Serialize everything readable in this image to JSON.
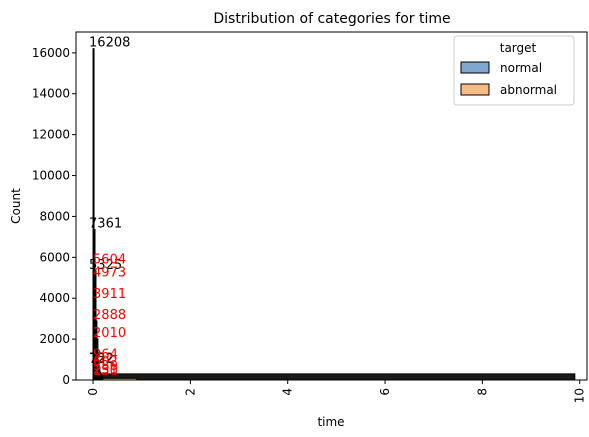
{
  "chart_data": {
    "type": "bar",
    "title": "Distribution of categories for time",
    "xlabel": "time",
    "ylabel": "Count",
    "xlim": [
      -0.35,
      10.15
    ],
    "ylim": [
      0,
      17020
    ],
    "xticks": [
      0,
      2,
      4,
      6,
      8,
      10
    ],
    "yticks": [
      0,
      2000,
      4000,
      6000,
      8000,
      10000,
      12000,
      14000,
      16000
    ],
    "grid": false,
    "legend": {
      "title": "target",
      "position": "top-right"
    },
    "series": [
      {
        "name": "normal",
        "color": "#7ea6cf",
        "edgecolor": "#000000",
        "label_color": "#000000",
        "bins": [
          {
            "x": 0.0,
            "value": 16208
          },
          {
            "x": 0.02,
            "value": 7361
          },
          {
            "x": 0.04,
            "value": 5325
          },
          {
            "x": 0.06,
            "value": 752
          },
          {
            "x": 0.08,
            "value": 722
          }
        ],
        "tail": {
          "from": 0.1,
          "to": 9.9,
          "value": 300
        }
      },
      {
        "name": "abnormal",
        "color": "#f7bb86",
        "edgecolor": "#000000",
        "label_color": "#ff0000",
        "bins": [
          {
            "x": 0.0,
            "value": 5604
          },
          {
            "x": 0.02,
            "value": 4973
          },
          {
            "x": 0.04,
            "value": 3911
          },
          {
            "x": 0.06,
            "value": 2888
          },
          {
            "x": 0.08,
            "value": 2010
          },
          {
            "x": 0.1,
            "value": 964
          },
          {
            "x": 0.12,
            "value": 602
          },
          {
            "x": 0.14,
            "value": 380
          },
          {
            "x": 0.16,
            "value": 231
          },
          {
            "x": 0.18,
            "value": 150
          }
        ],
        "tail": {
          "from": 0.2,
          "to": 0.9,
          "value": 80
        }
      }
    ]
  }
}
